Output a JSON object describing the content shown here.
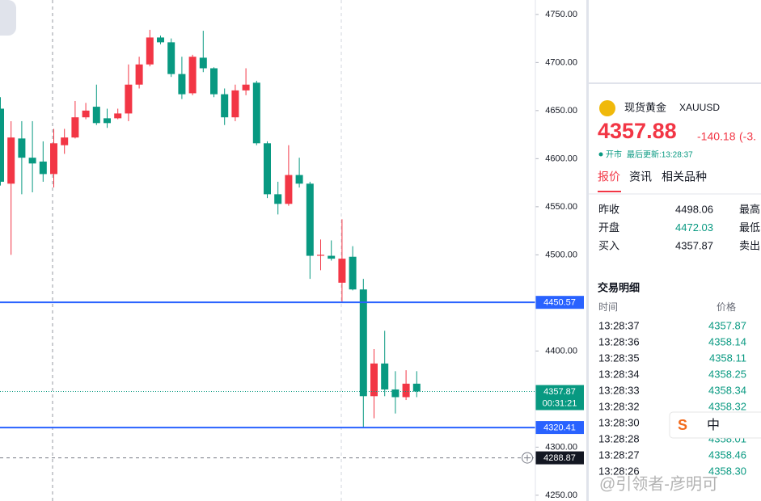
{
  "chart_data": {
    "type": "candlestick",
    "up_color": "#f23645",
    "down_color": "#089981",
    "ohlc": [
      [
        4652,
        4664,
        4572,
        4576
      ],
      [
        4574,
        4639,
        4500,
        4622
      ],
      [
        4621,
        4639,
        4563,
        4601
      ],
      [
        4601,
        4639,
        4565,
        4595
      ],
      [
        4597,
        4618,
        4576,
        4584
      ],
      [
        4584,
        4631,
        4570,
        4616
      ],
      [
        4614,
        4631,
        4605,
        4622
      ],
      [
        4622,
        4660,
        4621,
        4643
      ],
      [
        4643,
        4658,
        4641,
        4650
      ],
      [
        4654,
        4677,
        4635,
        4637
      ],
      [
        4642,
        4652,
        4632,
        4637
      ],
      [
        4642,
        4652,
        4641,
        4647
      ],
      [
        4647,
        4698,
        4639,
        4677
      ],
      [
        4677,
        4706,
        4673,
        4698
      ],
      [
        4698,
        4734,
        4696,
        4726
      ],
      [
        4726,
        4728,
        4719,
        4721
      ],
      [
        4721,
        4725,
        4685,
        4688
      ],
      [
        4688,
        4706,
        4662,
        4667
      ],
      [
        4668,
        4708,
        4666,
        4706
      ],
      [
        4705,
        4733,
        4690,
        4694
      ],
      [
        4694,
        4695,
        4664,
        4667
      ],
      [
        4667,
        4673,
        4635,
        4643
      ],
      [
        4643,
        4677,
        4639,
        4671
      ],
      [
        4671,
        4694,
        4666,
        4677
      ],
      [
        4679,
        4681,
        4614,
        4616
      ],
      [
        4616,
        4618,
        4559,
        4563
      ],
      [
        4563,
        4576,
        4542,
        4553
      ],
      [
        4553,
        4614,
        4551,
        4583
      ],
      [
        4583,
        4601,
        4570,
        4574
      ],
      [
        4574,
        4576,
        4475,
        4499
      ],
      [
        4499,
        4516,
        4484,
        4500
      ],
      [
        4499,
        4515,
        4494,
        4496
      ],
      [
        4471,
        4537,
        4450,
        4496
      ],
      [
        4498,
        4509,
        4463,
        4464
      ],
      [
        4464,
        4475,
        4320,
        4353
      ],
      [
        4353,
        4402,
        4330,
        4387
      ],
      [
        4387,
        4421,
        4353,
        4360
      ],
      [
        4360,
        4379,
        4335,
        4352
      ],
      [
        4352,
        4380,
        4349,
        4366
      ],
      [
        4366,
        4379,
        4352,
        4357.87
      ]
    ],
    "ylim": [
      4244,
      4765
    ],
    "yticks": [
      {
        "value": 4250,
        "label": "4250.00"
      },
      {
        "value": 4300,
        "label": "4300.00"
      },
      {
        "value": 4350,
        "label": "4350.00"
      },
      {
        "value": 4400,
        "label": "4400.00"
      },
      {
        "value": 4450,
        "label": "4450.00"
      },
      {
        "value": 4500,
        "label": "4500.00"
      },
      {
        "value": 4550,
        "label": "4550.00"
      },
      {
        "value": 4600,
        "label": "4600.00"
      },
      {
        "value": 4650,
        "label": "4650.00"
      },
      {
        "value": 4700,
        "label": "4700.00"
      },
      {
        "value": 4750,
        "label": "4750.00"
      }
    ],
    "price_lines": [
      {
        "value": 4450.57,
        "color": "#2962ff"
      },
      {
        "value": 4320.41,
        "color": "#2962ff"
      }
    ],
    "current_price": {
      "value": 4357.87,
      "color": "#089981",
      "countdown": "00:31:21"
    },
    "crosshair": {
      "value": 4288.87,
      "color": "#131722"
    }
  },
  "panel": {
    "symbol_name": "现货黄金",
    "symbol_code": "XAUUSD",
    "price": "4357.88",
    "change": "-140.18",
    "change_pct": "(-3.",
    "status": "开市",
    "updated": "最后更新:13:28:37",
    "tabs": [
      "报价",
      "资讯",
      "相关品种"
    ],
    "quote_rows": [
      [
        "昨收",
        "4498.06",
        "最高"
      ],
      [
        "开盘",
        "4472.03",
        "最低"
      ],
      [
        "买入",
        "4357.87",
        "卖出"
      ]
    ],
    "trades_title": "交易明细",
    "trades_header": [
      "时间",
      "价格"
    ],
    "trades": [
      {
        "time": "13:28:37",
        "price": "4357.87"
      },
      {
        "time": "13:28:36",
        "price": "4358.14"
      },
      {
        "time": "13:28:35",
        "price": "4358.11"
      },
      {
        "time": "13:28:34",
        "price": "4358.25"
      },
      {
        "time": "13:28:33",
        "price": "4358.34"
      },
      {
        "time": "13:28:32",
        "price": "4358.32"
      },
      {
        "time": "13:28:30"
      },
      {
        "time": "13:28:28",
        "price": "4358.01"
      },
      {
        "time": "13:28:27",
        "price": "4358.46"
      },
      {
        "time": "13:28:26",
        "price": "4358.30"
      }
    ],
    "ime": "中",
    "watermark": "@引领者-彦明可"
  }
}
